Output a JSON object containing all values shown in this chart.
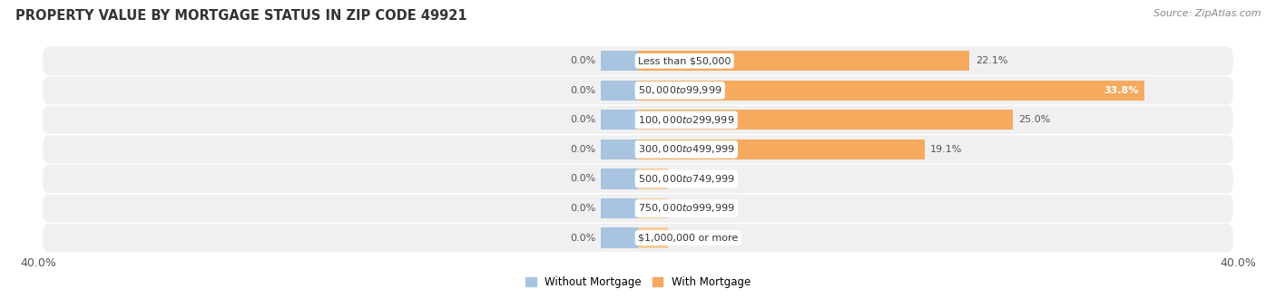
{
  "title": "PROPERTY VALUE BY MORTGAGE STATUS IN ZIP CODE 49921",
  "source": "Source: ZipAtlas.com",
  "categories": [
    "Less than $50,000",
    "$50,000 to $99,999",
    "$100,000 to $299,999",
    "$300,000 to $499,999",
    "$500,000 to $749,999",
    "$750,000 to $999,999",
    "$1,000,000 or more"
  ],
  "without_mortgage": [
    0.0,
    0.0,
    0.0,
    0.0,
    0.0,
    0.0,
    0.0
  ],
  "with_mortgage": [
    22.1,
    33.8,
    25.0,
    19.1,
    0.0,
    0.0,
    0.0
  ],
  "axis_max": 40.0,
  "color_without": "#a8c4e0",
  "color_with": "#f5aa5e",
  "color_with_stub": "#f5cc99",
  "bg_row_color": "#f0f0f0",
  "title_fontsize": 10.5,
  "source_fontsize": 8,
  "label_fontsize": 8,
  "bar_label_fontsize": 8,
  "legend_fontsize": 8.5,
  "axis_label_fontsize": 9
}
